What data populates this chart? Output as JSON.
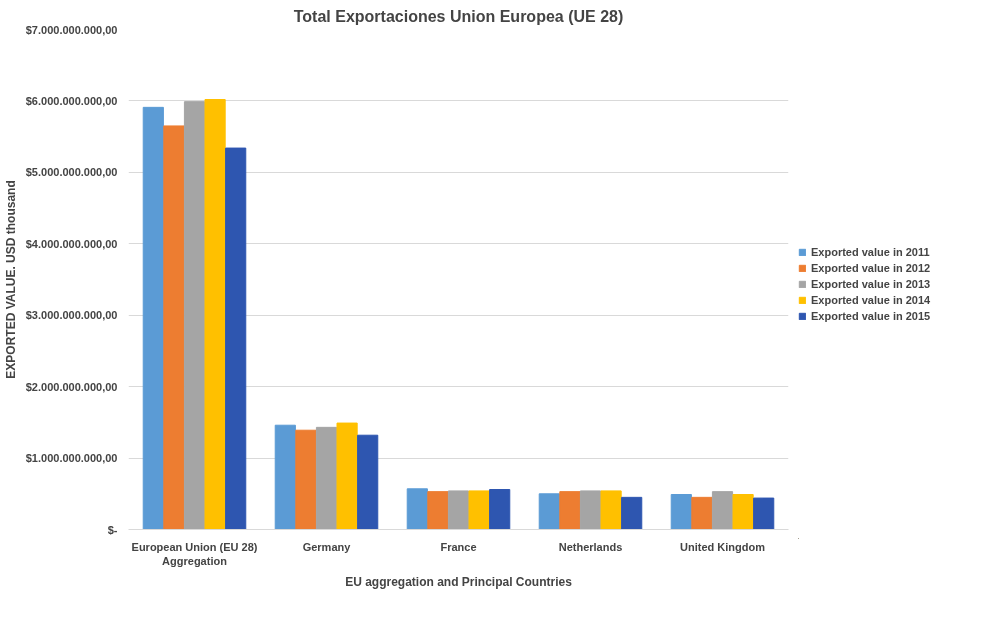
{
  "chart_data": {
    "type": "bar",
    "title": "Total Exportaciones Union Europea (UE 28)",
    "xlabel": "EU aggregation and Principal Countries",
    "ylabel": "EXPORTED VALUE. USD thousand",
    "categories": [
      "European Union (EU 28)\nAggregation",
      "Germany",
      "France",
      "Netherlands",
      "United Kingdom"
    ],
    "series": [
      {
        "name": "Exported value in 2011",
        "color": "#5b9bd5",
        "values": [
          5910000000,
          1460000000,
          570000000,
          500000000,
          490000000
        ]
      },
      {
        "name": "Exported value in 2012",
        "color": "#ed7d31",
        "values": [
          5650000000,
          1390000000,
          530000000,
          530000000,
          450000000
        ]
      },
      {
        "name": "Exported value in 2013",
        "color": "#a5a5a5",
        "values": [
          5990000000,
          1430000000,
          540000000,
          540000000,
          530000000
        ]
      },
      {
        "name": "Exported value in 2014",
        "color": "#ffc000",
        "values": [
          6020000000,
          1490000000,
          540000000,
          540000000,
          490000000
        ]
      },
      {
        "name": "Exported value in 2015",
        "color": "#2e56b0",
        "values": [
          5340000000,
          1320000000,
          560000000,
          450000000,
          440000000
        ]
      }
    ],
    "ylim": [
      0,
      7000000000
    ],
    "yticks": [
      {
        "value": 0,
        "label": "$-"
      },
      {
        "value": 1000000000,
        "label": "$1.000.000.000,00"
      },
      {
        "value": 2000000000,
        "label": "$2.000.000.000,00"
      },
      {
        "value": 3000000000,
        "label": "$3.000.000.000,00"
      },
      {
        "value": 4000000000,
        "label": "$4.000.000.000,00"
      },
      {
        "value": 5000000000,
        "label": "$5.000.000.000,00"
      },
      {
        "value": 6000000000,
        "label": "$6.000.000.000,00"
      },
      {
        "value": 7000000000,
        "label": "$7.000.000.000,00"
      }
    ],
    "grid": "y",
    "legend": "right"
  }
}
